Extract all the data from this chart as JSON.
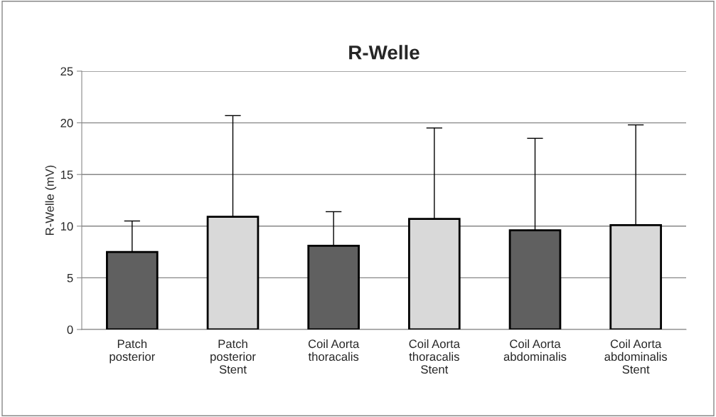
{
  "chart_data": {
    "type": "bar",
    "title": "R-Welle",
    "ylabel": "R-Welle (mV)",
    "categories": [
      "Patch\nposterior",
      "Patch\nposterior\nStent",
      "Coil Aorta\nthoracalis",
      "Coil Aorta\nthoracalis\nStent",
      "Coil Aorta\nabdominalis",
      "Coil Aorta\nabdominalis\nStent"
    ],
    "values": [
      7.5,
      10.9,
      8.1,
      10.7,
      9.6,
      10.1
    ],
    "colors": [
      "#606060",
      "#d9d9d9",
      "#606060",
      "#d9d9d9",
      "#606060",
      "#d9d9d9"
    ],
    "errors": [
      [
        7.5,
        10.5
      ],
      [
        10.9,
        20.7
      ],
      [
        8.1,
        11.4
      ],
      [
        10.7,
        19.5
      ],
      [
        9.6,
        18.5
      ],
      [
        10.1,
        19.8
      ]
    ],
    "ylim": [
      0,
      25
    ],
    "yticks": [
      0,
      5,
      10,
      15,
      20,
      25
    ],
    "grid": "y"
  }
}
